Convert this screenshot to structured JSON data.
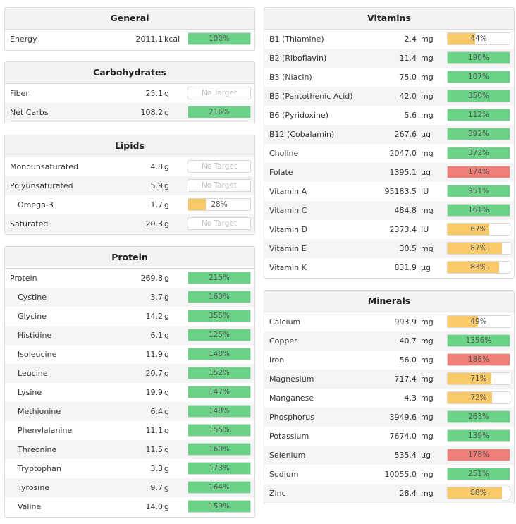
{
  "general": {
    "title": "General",
    "rows": [
      {
        "name": "Energy",
        "amount": "2011.1",
        "unit": "kcal",
        "pct": "100%",
        "fill": 1.0,
        "color": "green"
      }
    ]
  },
  "carbohydrates": {
    "title": "Carbohydrates",
    "rows": [
      {
        "name": "Fiber",
        "amount": "25.1",
        "unit": "g",
        "pct": "No Target",
        "fill": 0,
        "color": "none"
      },
      {
        "name": "Net Carbs",
        "amount": "108.2",
        "unit": "g",
        "pct": "216%",
        "fill": 1.0,
        "color": "green"
      }
    ]
  },
  "lipids": {
    "title": "Lipids",
    "rows": [
      {
        "name": "Monounsaturated",
        "amount": "4.8",
        "unit": "g",
        "pct": "No Target",
        "fill": 0,
        "color": "none"
      },
      {
        "name": "Polyunsaturated",
        "amount": "5.9",
        "unit": "g",
        "pct": "No Target",
        "fill": 0,
        "color": "none"
      },
      {
        "name": "Omega-3",
        "amount": "1.7",
        "unit": "g",
        "pct": "28%",
        "fill": 0.28,
        "color": "yellow",
        "indent": true
      },
      {
        "name": "Saturated",
        "amount": "20.3",
        "unit": "g",
        "pct": "No Target",
        "fill": 0,
        "color": "none"
      }
    ]
  },
  "protein": {
    "title": "Protein",
    "rows": [
      {
        "name": "Protein",
        "amount": "269.8",
        "unit": "g",
        "pct": "215%",
        "fill": 1.0,
        "color": "green"
      },
      {
        "name": "Cystine",
        "amount": "3.7",
        "unit": "g",
        "pct": "160%",
        "fill": 1.0,
        "color": "green",
        "indent": true
      },
      {
        "name": "Glycine",
        "amount": "14.2",
        "unit": "g",
        "pct": "355%",
        "fill": 1.0,
        "color": "green",
        "indent": true
      },
      {
        "name": "Histidine",
        "amount": "6.1",
        "unit": "g",
        "pct": "125%",
        "fill": 1.0,
        "color": "green",
        "indent": true
      },
      {
        "name": "Isoleucine",
        "amount": "11.9",
        "unit": "g",
        "pct": "148%",
        "fill": 1.0,
        "color": "green",
        "indent": true
      },
      {
        "name": "Leucine",
        "amount": "20.7",
        "unit": "g",
        "pct": "152%",
        "fill": 1.0,
        "color": "green",
        "indent": true
      },
      {
        "name": "Lysine",
        "amount": "19.9",
        "unit": "g",
        "pct": "147%",
        "fill": 1.0,
        "color": "green",
        "indent": true
      },
      {
        "name": "Methionine",
        "amount": "6.4",
        "unit": "g",
        "pct": "148%",
        "fill": 1.0,
        "color": "green",
        "indent": true
      },
      {
        "name": "Phenylalanine",
        "amount": "11.1",
        "unit": "g",
        "pct": "155%",
        "fill": 1.0,
        "color": "green",
        "indent": true
      },
      {
        "name": "Threonine",
        "amount": "11.5",
        "unit": "g",
        "pct": "160%",
        "fill": 1.0,
        "color": "green",
        "indent": true
      },
      {
        "name": "Tryptophan",
        "amount": "3.3",
        "unit": "g",
        "pct": "173%",
        "fill": 1.0,
        "color": "green",
        "indent": true
      },
      {
        "name": "Tyrosine",
        "amount": "9.7",
        "unit": "g",
        "pct": "164%",
        "fill": 1.0,
        "color": "green",
        "indent": true
      },
      {
        "name": "Valine",
        "amount": "14.0",
        "unit": "g",
        "pct": "159%",
        "fill": 1.0,
        "color": "green",
        "indent": true
      }
    ]
  },
  "vitamins": {
    "title": "Vitamins",
    "rows": [
      {
        "name": "B1 (Thiamine)",
        "amount": "2.4",
        "unit": "mg",
        "pct": "44%",
        "fill": 0.44,
        "color": "yellow"
      },
      {
        "name": "B2 (Riboflavin)",
        "amount": "11.4",
        "unit": "mg",
        "pct": "190%",
        "fill": 1.0,
        "color": "green"
      },
      {
        "name": "B3 (Niacin)",
        "amount": "75.0",
        "unit": "mg",
        "pct": "107%",
        "fill": 1.0,
        "color": "green"
      },
      {
        "name": "B5 (Pantothenic Acid)",
        "amount": "42.0",
        "unit": "mg",
        "pct": "350%",
        "fill": 1.0,
        "color": "green"
      },
      {
        "name": "B6 (Pyridoxine)",
        "amount": "5.6",
        "unit": "mg",
        "pct": "112%",
        "fill": 1.0,
        "color": "green"
      },
      {
        "name": "B12 (Cobalamin)",
        "amount": "267.6",
        "unit": "µg",
        "pct": "892%",
        "fill": 1.0,
        "color": "green"
      },
      {
        "name": "Choline",
        "amount": "2047.0",
        "unit": "mg",
        "pct": "372%",
        "fill": 1.0,
        "color": "green"
      },
      {
        "name": "Folate",
        "amount": "1395.1",
        "unit": "µg",
        "pct": "174%",
        "fill": 1.0,
        "color": "red"
      },
      {
        "name": "Vitamin A",
        "amount": "95183.5",
        "unit": "IU",
        "pct": "951%",
        "fill": 1.0,
        "color": "green"
      },
      {
        "name": "Vitamin C",
        "amount": "484.8",
        "unit": "mg",
        "pct": "161%",
        "fill": 1.0,
        "color": "green"
      },
      {
        "name": "Vitamin D",
        "amount": "2373.4",
        "unit": "IU",
        "pct": "67%",
        "fill": 0.67,
        "color": "yellow"
      },
      {
        "name": "Vitamin E",
        "amount": "30.5",
        "unit": "mg",
        "pct": "87%",
        "fill": 0.87,
        "color": "yellow"
      },
      {
        "name": "Vitamin K",
        "amount": "831.9",
        "unit": "µg",
        "pct": "83%",
        "fill": 0.83,
        "color": "yellow"
      }
    ]
  },
  "minerals": {
    "title": "Minerals",
    "rows": [
      {
        "name": "Calcium",
        "amount": "993.9",
        "unit": "mg",
        "pct": "49%",
        "fill": 0.49,
        "color": "yellow"
      },
      {
        "name": "Copper",
        "amount": "40.7",
        "unit": "mg",
        "pct": "1356%",
        "fill": 1.0,
        "color": "green"
      },
      {
        "name": "Iron",
        "amount": "56.0",
        "unit": "mg",
        "pct": "186%",
        "fill": 1.0,
        "color": "red"
      },
      {
        "name": "Magnesium",
        "amount": "717.4",
        "unit": "mg",
        "pct": "71%",
        "fill": 0.71,
        "color": "yellow"
      },
      {
        "name": "Manganese",
        "amount": "4.3",
        "unit": "mg",
        "pct": "72%",
        "fill": 0.72,
        "color": "yellow"
      },
      {
        "name": "Phosphorus",
        "amount": "3949.6",
        "unit": "mg",
        "pct": "263%",
        "fill": 1.0,
        "color": "green"
      },
      {
        "name": "Potassium",
        "amount": "7674.0",
        "unit": "mg",
        "pct": "139%",
        "fill": 1.0,
        "color": "green"
      },
      {
        "name": "Selenium",
        "amount": "535.4",
        "unit": "µg",
        "pct": "178%",
        "fill": 1.0,
        "color": "red"
      },
      {
        "name": "Sodium",
        "amount": "10055.0",
        "unit": "mg",
        "pct": "251%",
        "fill": 1.0,
        "color": "green"
      },
      {
        "name": "Zinc",
        "amount": "28.4",
        "unit": "mg",
        "pct": "88%",
        "fill": 0.88,
        "color": "yellow"
      }
    ]
  },
  "colors": {
    "green": "#6ad388",
    "yellow": "#f7c968",
    "red": "#ef7f77"
  }
}
